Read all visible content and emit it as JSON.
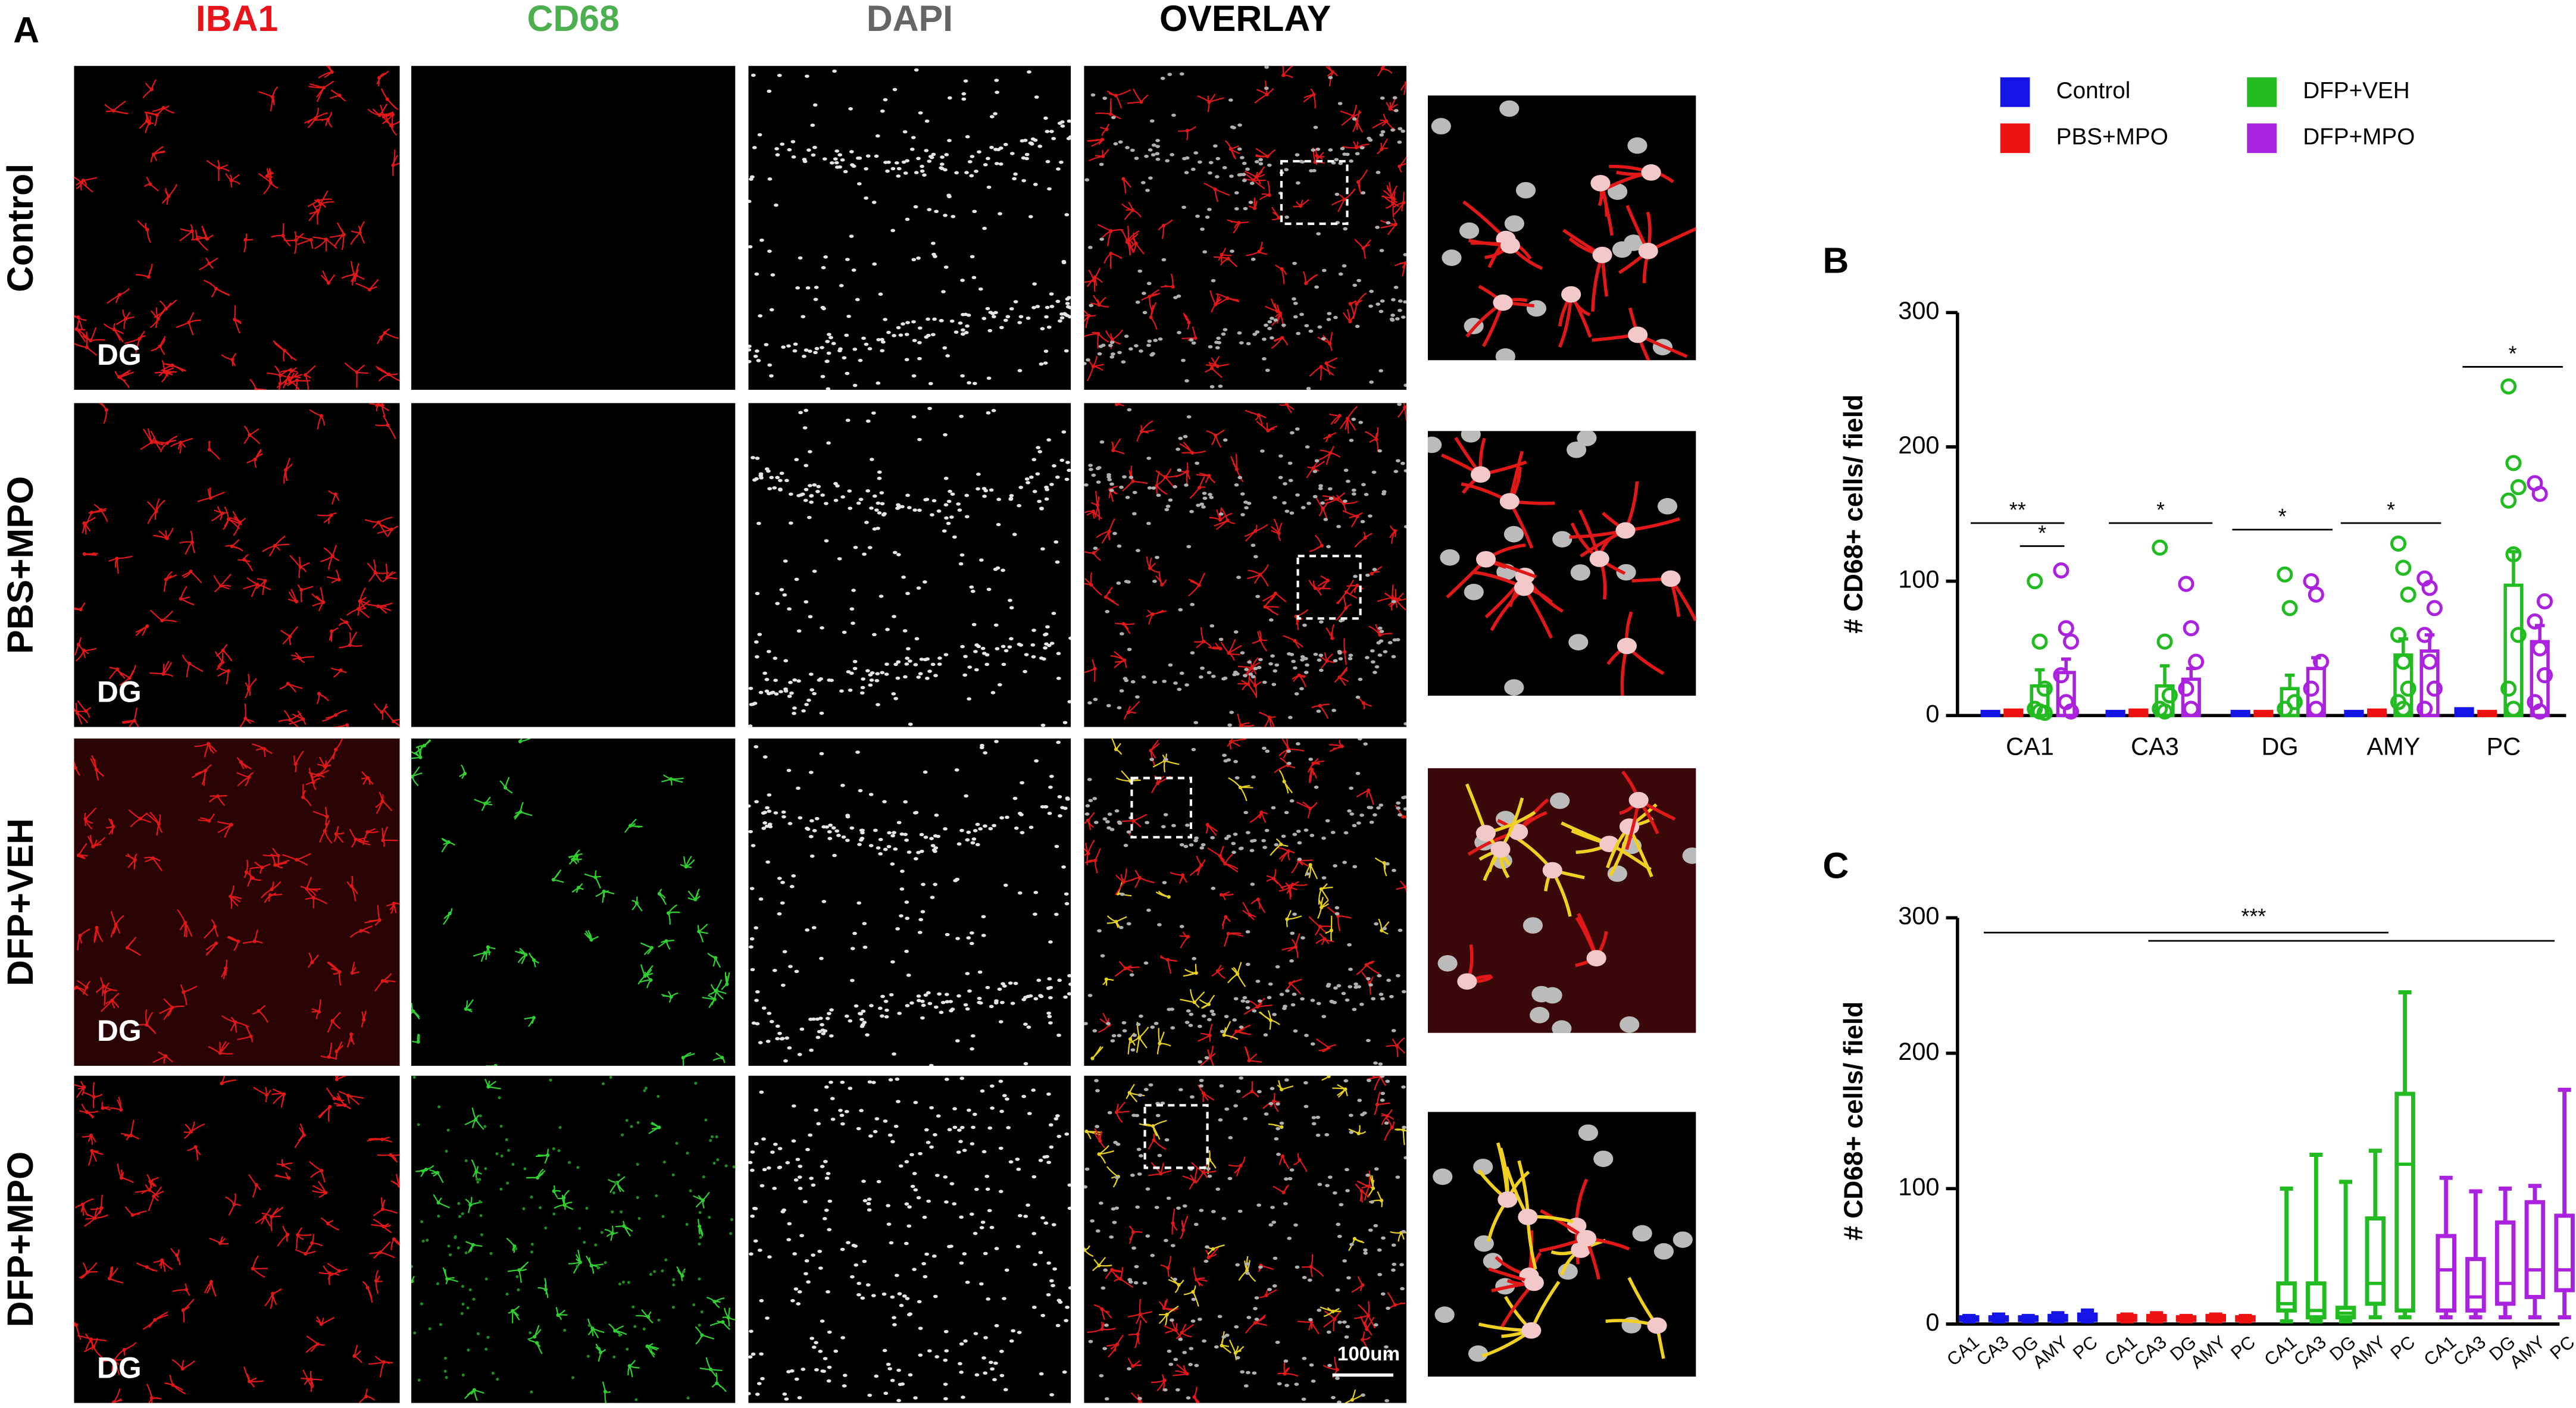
{
  "figure": {
    "panels": {
      "a": "A",
      "b": "B",
      "c": "C"
    },
    "columns": [
      "IBA1",
      "CD68",
      "DAPI",
      "OVERLAY"
    ],
    "column_colors": [
      "#e8141c",
      "#4caf50",
      "#666666",
      "#000000"
    ],
    "rows": [
      "Control",
      "PBS+MPO",
      "DFP+VEH",
      "DFP+MPO"
    ],
    "region_label": "DG",
    "scale_bar": "100um"
  },
  "chart_data": [
    {
      "type": "bar",
      "y_label": "# CD68+ cells/ field",
      "categories": [
        "CA1",
        "CA3",
        "DG",
        "AMY",
        "PC"
      ],
      "ylim": [
        0,
        300
      ],
      "yticks": [
        0,
        100,
        200,
        300
      ],
      "series": [
        {
          "name": "Control",
          "color": "#1414e6",
          "values": [
            3,
            3,
            3,
            3,
            5
          ]
        },
        {
          "name": "PBS+MPO",
          "color": "#ee1111",
          "values": [
            4,
            4,
            3,
            4,
            3
          ]
        },
        {
          "name": "DFP+VEH",
          "color": "#22bb22",
          "values": [
            22,
            22,
            20,
            45,
            97
          ],
          "errors": [
            12,
            15,
            10,
            12,
            25
          ],
          "points": [
            [
              100,
              55,
              20,
              5,
              3,
              2
            ],
            [
              125,
              55,
              15,
              5,
              3
            ],
            [
              105,
              80,
              10,
              5
            ],
            [
              128,
              110,
              90,
              60,
              40,
              20,
              10,
              5
            ],
            [
              245,
              188,
              170,
              160,
              120,
              60,
              20,
              5
            ]
          ]
        },
        {
          "name": "DFP+MPO",
          "color": "#aa22dd",
          "values": [
            32,
            27,
            35,
            48,
            55
          ],
          "errors": [
            10,
            8,
            8,
            12,
            12
          ],
          "points": [
            [
              108,
              65,
              55,
              30,
              10,
              3
            ],
            [
              98,
              65,
              40,
              20,
              5
            ],
            [
              100,
              90,
              40,
              20,
              5
            ],
            [
              102,
              95,
              80,
              60,
              40,
              20,
              5
            ],
            [
              173,
              165,
              85,
              70,
              50,
              30,
              10,
              3
            ]
          ]
        }
      ],
      "annotations": [
        {
          "text": "**"
        },
        {
          "text": "*"
        },
        {
          "text": "*"
        },
        {
          "text": "*"
        },
        {
          "text": "*"
        },
        {
          "text": "*"
        }
      ]
    },
    {
      "type": "box",
      "y_label": "# CD68+ cells/ field",
      "categories": [
        "CA1",
        "CA3",
        "DG",
        "AMY",
        "PC",
        "CA1",
        "CA3",
        "DG",
        "AMY",
        "PC",
        "CA1",
        "CA3",
        "DG",
        "AMY",
        "PC",
        "CA1",
        "CA3",
        "DG",
        "AMY",
        "PC"
      ],
      "ylim": [
        0,
        300
      ],
      "yticks": [
        0,
        100,
        200,
        300
      ],
      "series": [
        {
          "color": "#1414e6",
          "values": [
            {
              "min": 2,
              "q1": 3,
              "median": 4,
              "q3": 5,
              "max": 6
            },
            {
              "min": 2,
              "q1": 3,
              "median": 4,
              "q3": 5,
              "max": 7
            },
            {
              "min": 2,
              "q1": 3,
              "median": 3,
              "q3": 5,
              "max": 6
            },
            {
              "min": 2,
              "q1": 3,
              "median": 4,
              "q3": 6,
              "max": 8
            },
            {
              "min": 2,
              "q1": 3,
              "median": 5,
              "q3": 7,
              "max": 10
            }
          ]
        },
        {
          "color": "#ee1111",
          "values": [
            {
              "min": 2,
              "q1": 3,
              "median": 4,
              "q3": 6,
              "max": 7
            },
            {
              "min": 2,
              "q1": 3,
              "median": 4,
              "q3": 6,
              "max": 8
            },
            {
              "min": 2,
              "q1": 3,
              "median": 3,
              "q3": 5,
              "max": 6
            },
            {
              "min": 2,
              "q1": 3,
              "median": 4,
              "q3": 6,
              "max": 7
            },
            {
              "min": 2,
              "q1": 3,
              "median": 3,
              "q3": 5,
              "max": 6
            }
          ]
        },
        {
          "color": "#22bb22",
          "values": [
            {
              "min": 2,
              "q1": 10,
              "median": 15,
              "q3": 30,
              "max": 100
            },
            {
              "min": 2,
              "q1": 5,
              "median": 10,
              "q3": 30,
              "max": 125
            },
            {
              "min": 2,
              "q1": 5,
              "median": 8,
              "q3": 12,
              "max": 105
            },
            {
              "min": 5,
              "q1": 15,
              "median": 30,
              "q3": 78,
              "max": 128
            },
            {
              "min": 5,
              "q1": 10,
              "median": 118,
              "q3": 170,
              "max": 245
            }
          ]
        },
        {
          "color": "#aa22dd",
          "values": [
            {
              "min": 5,
              "q1": 10,
              "median": 40,
              "q3": 65,
              "max": 108
            },
            {
              "min": 5,
              "q1": 10,
              "median": 20,
              "q3": 48,
              "max": 98
            },
            {
              "min": 5,
              "q1": 15,
              "median": 30,
              "q3": 75,
              "max": 100
            },
            {
              "min": 5,
              "q1": 20,
              "median": 40,
              "q3": 90,
              "max": 102
            },
            {
              "min": 5,
              "q1": 25,
              "median": 40,
              "q3": 80,
              "max": 173
            }
          ]
        }
      ],
      "annotations": [
        {
          "text": "***"
        }
      ]
    }
  ]
}
